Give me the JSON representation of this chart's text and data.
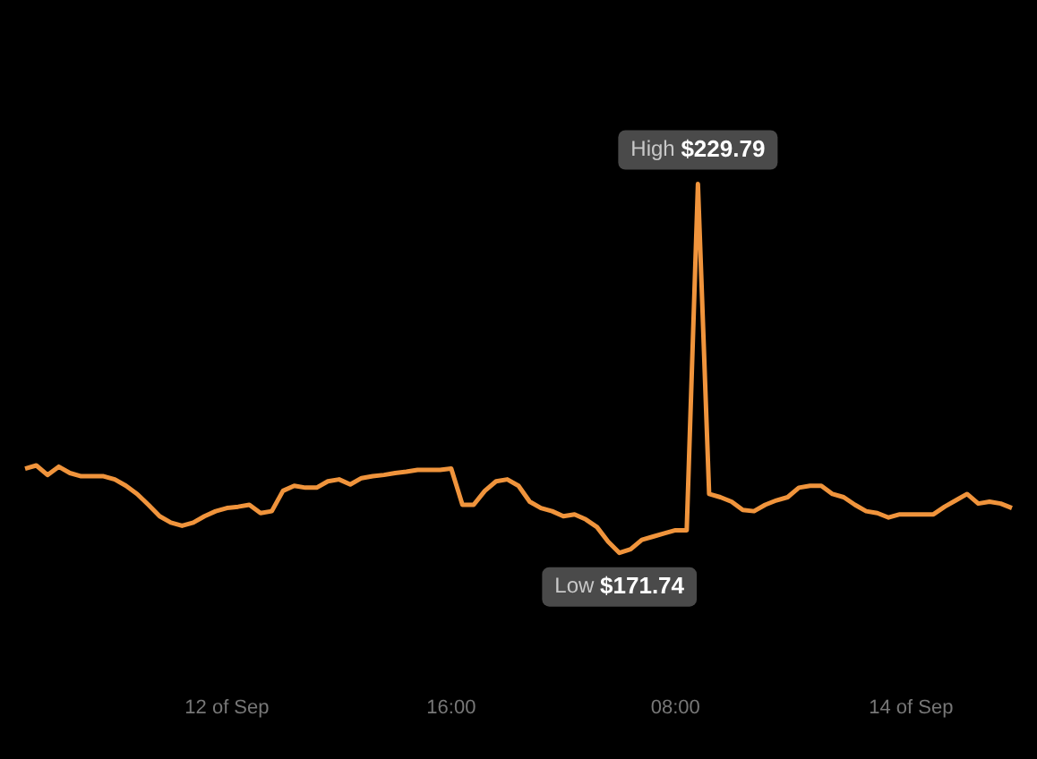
{
  "chart_data": {
    "type": "line",
    "categories": [
      null,
      null,
      null,
      null,
      null,
      null,
      null,
      null,
      null,
      null,
      null,
      null,
      null,
      null,
      null,
      null,
      null,
      null,
      "12 of Sep",
      null,
      null,
      null,
      null,
      null,
      null,
      null,
      null,
      null,
      null,
      null,
      null,
      null,
      null,
      null,
      null,
      null,
      null,
      null,
      "16:00",
      null,
      null,
      null,
      null,
      null,
      null,
      null,
      null,
      null,
      null,
      null,
      null,
      null,
      null,
      null,
      null,
      null,
      null,
      null,
      "08:00",
      null,
      null,
      null,
      null,
      null,
      null,
      null,
      null,
      null,
      null,
      null,
      null,
      null,
      null,
      null,
      null,
      null,
      null,
      null,
      null,
      "14 of Sep",
      null,
      null,
      null,
      null,
      null,
      null,
      null,
      null,
      null
    ],
    "series": [
      {
        "color": "#f0943c",
        "values": [
          185.0,
          185.5,
          184.0,
          185.3,
          184.3,
          183.8,
          183.8,
          183.8,
          183.3,
          182.3,
          181.0,
          179.3,
          177.5,
          176.5,
          176.0,
          176.5,
          177.5,
          178.3,
          178.8,
          179.0,
          179.3,
          178.0,
          178.3,
          181.5,
          182.3,
          182.0,
          182.0,
          183.0,
          183.3,
          182.5,
          183.5,
          183.8,
          184.0,
          184.3,
          184.5,
          184.8,
          184.8,
          184.8,
          185.0,
          179.3,
          179.3,
          181.5,
          183.0,
          183.3,
          182.3,
          179.8,
          178.8,
          178.3,
          177.5,
          177.8,
          177.0,
          175.8,
          173.5,
          171.74,
          172.3,
          173.8,
          174.3,
          174.8,
          175.3,
          175.3,
          229.79,
          181.0,
          180.5,
          179.8,
          178.5,
          178.3,
          179.3,
          180.0,
          180.5,
          182.0,
          182.3,
          182.3,
          181.0,
          180.5,
          179.3,
          178.3,
          178.0,
          177.3,
          177.8,
          177.8,
          177.8,
          177.8,
          179.0,
          180.0,
          181.0,
          179.5,
          179.8,
          179.5,
          178.8
        ],
        "value_labels": [
          null,
          null,
          null,
          null,
          null,
          null,
          null,
          null,
          null,
          null,
          null,
          null,
          null,
          null,
          null,
          null,
          null,
          null,
          null,
          null,
          null,
          null,
          null,
          null,
          null,
          null,
          null,
          null,
          null,
          null,
          null,
          null,
          null,
          null,
          null,
          null,
          null,
          null,
          null,
          null,
          null,
          null,
          null,
          null,
          null,
          null,
          null,
          null,
          null,
          null,
          null,
          null,
          null,
          "Low $171.74",
          null,
          null,
          null,
          null,
          null,
          null,
          "High $229.79",
          null,
          null,
          null,
          null,
          null,
          null,
          null,
          null,
          null,
          null,
          null,
          null,
          null,
          null,
          null,
          null,
          null,
          null,
          null,
          null,
          null,
          null,
          null,
          null,
          null,
          null,
          null,
          null
        ]
      }
    ],
    "legend": false,
    "marker": "none",
    "line_style": "solid"
  }
}
